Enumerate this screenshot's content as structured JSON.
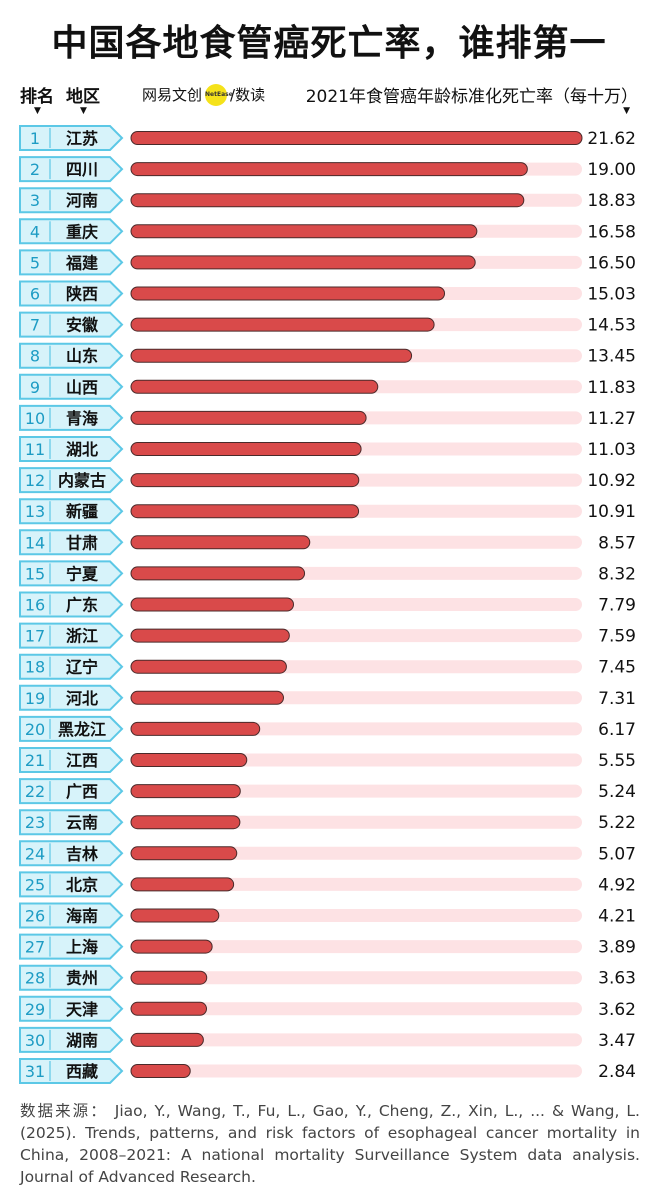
{
  "page": {
    "title": "中国各地食管癌死亡率，谁排第一",
    "header_rank": "排名",
    "header_region": "地区",
    "header_metric": "2021年食管癌年龄标准化死亡率（每十万）",
    "logo_text": "网易文创",
    "logo_badge": "NetEase",
    "logo_suffix": "/数读",
    "source": "数据来源： Jiao, Y., Wang, T., Fu, L., Gao, Y., Cheng, Z., Xin, L., ... & Wang, L. (2025). Trends, patterns, and risk factors of esophageal cancer mortality in China, 2008–2021: A national mortality Surveillance System data analysis. Journal of Advanced Research."
  },
  "colors": {
    "bar": "#d94a4a",
    "bar_outline": "#4a2a2a",
    "track": "#fde2e4",
    "rank_fill": "#d7f3fa",
    "rank_stroke": "#5cc8e6",
    "rank_text": "#1e9cc4"
  },
  "chart_data": {
    "type": "bar",
    "orientation": "horizontal",
    "xlim": [
      0,
      21.62
    ],
    "ranks": [
      1,
      2,
      3,
      4,
      5,
      6,
      7,
      8,
      9,
      10,
      11,
      12,
      13,
      14,
      15,
      16,
      17,
      18,
      19,
      20,
      21,
      22,
      23,
      24,
      25,
      26,
      27,
      28,
      29,
      30,
      31
    ],
    "categories": [
      "江苏",
      "四川",
      "河南",
      "重庆",
      "福建",
      "陕西",
      "安徽",
      "山东",
      "山西",
      "青海",
      "湖北",
      "内蒙古",
      "新疆",
      "甘肃",
      "宁夏",
      "广东",
      "浙江",
      "辽宁",
      "河北",
      "黑龙江",
      "江西",
      "广西",
      "云南",
      "吉林",
      "北京",
      "海南",
      "上海",
      "贵州",
      "天津",
      "湖南",
      "西藏"
    ],
    "values": [
      21.62,
      19.0,
      18.83,
      16.58,
      16.5,
      15.03,
      14.53,
      13.45,
      11.83,
      11.27,
      11.03,
      10.92,
      10.91,
      8.57,
      8.32,
      7.79,
      7.59,
      7.45,
      7.31,
      6.17,
      5.55,
      5.24,
      5.22,
      5.07,
      4.92,
      4.21,
      3.89,
      3.63,
      3.62,
      3.47,
      2.84
    ],
    "labels": [
      "21.62",
      "19.00",
      "18.83",
      "16.58",
      "16.50",
      "15.03",
      "14.53",
      "13.45",
      "11.83",
      "11.27",
      "11.03",
      "10.92",
      "10.91",
      "8.57",
      "8.32",
      "7.79",
      "7.59",
      "7.45",
      "7.31",
      "6.17",
      "5.55",
      "5.24",
      "5.22",
      "5.07",
      "4.92",
      "4.21",
      "3.89",
      "3.63",
      "3.62",
      "3.47",
      "2.84"
    ]
  }
}
